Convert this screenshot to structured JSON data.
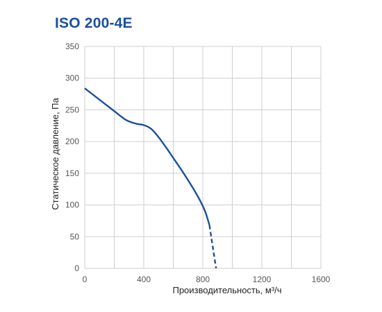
{
  "chart_data": {
    "type": "line",
    "title": "ISO 200-4E",
    "xlabel": "Производительность, м³/ч",
    "ylabel": "Статическое давление, Па",
    "xlim": [
      0,
      1600
    ],
    "ylim": [
      0,
      350
    ],
    "xticks": [
      0,
      400,
      800,
      1200,
      1600
    ],
    "yticks": [
      0,
      50,
      100,
      150,
      200,
      250,
      300,
      350
    ],
    "grid": true,
    "series": [
      {
        "style": "solid",
        "color": "#1b4f9c",
        "x": [
          0,
          100,
          200,
          280,
          350,
          400,
          450,
          500,
          550,
          600,
          650,
          700,
          750,
          790,
          820,
          845
        ],
        "y": [
          284,
          266,
          248,
          234,
          228,
          226,
          220,
          207,
          191,
          174,
          157,
          139,
          120,
          103,
          87,
          68
        ]
      },
      {
        "style": "dashed",
        "color": "#1b4f9c",
        "x": [
          845,
          870,
          890
        ],
        "y": [
          68,
          30,
          0
        ]
      }
    ]
  }
}
